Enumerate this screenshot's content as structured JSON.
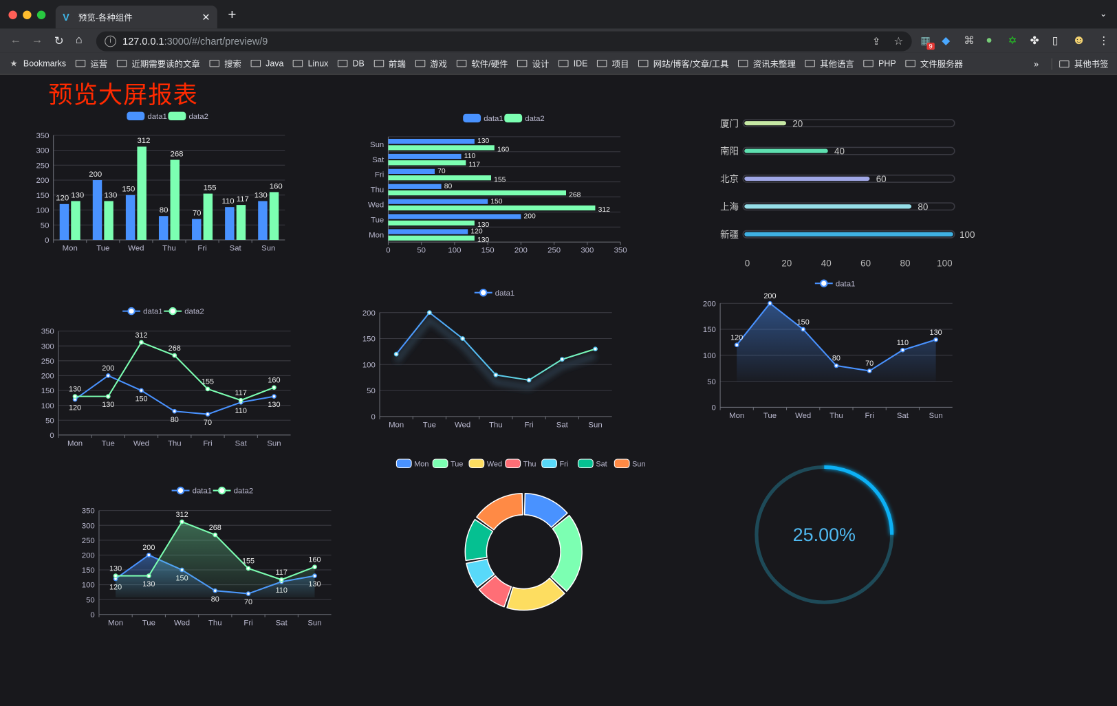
{
  "browser": {
    "tab_title": "预览-各种组件",
    "url_host": "127.0.0.1",
    "url_rest": ":3000/#/chart/preview/9",
    "extension_badge": "9",
    "bookmarks_label": "Bookmarks",
    "folders": [
      "运营",
      "近期需要读的文章",
      "搜索",
      "Java",
      "Linux",
      "DB",
      "前端",
      "游戏",
      "软件/硬件",
      "设计",
      "IDE",
      "项目",
      "网站/博客/文章/工具",
      "资讯未整理",
      "其他语言",
      "PHP",
      "文件服务器"
    ],
    "overflow": "»",
    "other_bookmarks": "其他书签"
  },
  "page": {
    "title": "预览大屏报表"
  },
  "colors": {
    "data1": "#4992ff",
    "data2": "#7cffb2",
    "title": "#ff2a00",
    "gauge": "#0bb0f5",
    "gauge_track": "#1e4a58"
  },
  "chart_data": [
    {
      "type": "bar",
      "categories": [
        "Mon",
        "Tue",
        "Wed",
        "Thu",
        "Fri",
        "Sat",
        "Sun"
      ],
      "series": [
        {
          "name": "data1",
          "values": [
            120,
            200,
            150,
            80,
            70,
            110,
            130
          ]
        },
        {
          "name": "data2",
          "values": [
            130,
            130,
            312,
            268,
            155,
            117,
            160
          ]
        }
      ],
      "ylim": [
        0,
        350
      ],
      "yticks": [
        0,
        50,
        100,
        150,
        200,
        250,
        300,
        350
      ],
      "legend": "top-center",
      "grid": true
    },
    {
      "type": "bar",
      "orientation": "horizontal",
      "categories": [
        "Mon",
        "Tue",
        "Wed",
        "Thu",
        "Fri",
        "Sat",
        "Sun"
      ],
      "series": [
        {
          "name": "data1",
          "values": [
            120,
            200,
            150,
            80,
            70,
            110,
            130
          ]
        },
        {
          "name": "data2",
          "values": [
            130,
            130,
            312,
            268,
            155,
            117,
            160
          ]
        }
      ],
      "xlim": [
        0,
        350
      ],
      "xticks": [
        0,
        50,
        100,
        150,
        200,
        250,
        300,
        350
      ],
      "legend": "top-center",
      "grid": true
    },
    {
      "type": "bar",
      "orientation": "horizontal",
      "style": "progress",
      "categories": [
        "新疆",
        "上海",
        "北京",
        "南阳",
        "厦门"
      ],
      "values": [
        100,
        80,
        60,
        40,
        20
      ],
      "colors": [
        "#3fb1e3",
        "#96dee8",
        "#a0a7e6",
        "#5ee0b0",
        "#c6e8a4"
      ],
      "xlim": [
        0,
        100
      ],
      "xticks": [
        0,
        20,
        40,
        60,
        80,
        100
      ]
    },
    {
      "type": "line",
      "categories": [
        "Mon",
        "Tue",
        "Wed",
        "Thu",
        "Fri",
        "Sat",
        "Sun"
      ],
      "series": [
        {
          "name": "data1",
          "values": [
            120,
            200,
            150,
            80,
            70,
            110,
            130
          ]
        },
        {
          "name": "data2",
          "values": [
            130,
            130,
            312,
            268,
            155,
            117,
            160
          ]
        }
      ],
      "ylim": [
        0,
        350
      ],
      "yticks": [
        0,
        50,
        100,
        150,
        200,
        250,
        300,
        350
      ],
      "legend": "top-center",
      "grid": true
    },
    {
      "type": "line",
      "categories": [
        "Mon",
        "Tue",
        "Wed",
        "Thu",
        "Fri",
        "Sat",
        "Sun"
      ],
      "series": [
        {
          "name": "data1",
          "values": [
            120,
            200,
            150,
            80,
            70,
            110,
            130
          ]
        }
      ],
      "ylim": [
        0,
        200
      ],
      "yticks": [
        0,
        50,
        100,
        150,
        200
      ],
      "legend": "top-center",
      "grid": true
    },
    {
      "type": "area",
      "categories": [
        "Mon",
        "Tue",
        "Wed",
        "Thu",
        "Fri",
        "Sat",
        "Sun"
      ],
      "series": [
        {
          "name": "data1",
          "values": [
            120,
            200,
            150,
            80,
            70,
            110,
            130
          ]
        }
      ],
      "ylim": [
        0,
        200
      ],
      "yticks": [
        0,
        50,
        100,
        150,
        200
      ],
      "legend": "top-center",
      "grid": true
    },
    {
      "type": "area",
      "categories": [
        "Mon",
        "Tue",
        "Wed",
        "Thu",
        "Fri",
        "Sat",
        "Sun"
      ],
      "series": [
        {
          "name": "data1",
          "values": [
            120,
            200,
            150,
            80,
            70,
            110,
            130
          ]
        },
        {
          "name": "data2",
          "values": [
            130,
            130,
            312,
            268,
            155,
            117,
            160
          ]
        }
      ],
      "ylim": [
        0,
        350
      ],
      "yticks": [
        0,
        50,
        100,
        150,
        200,
        250,
        300,
        350
      ],
      "legend": "top-center",
      "grid": true
    },
    {
      "type": "pie",
      "donut": true,
      "categories": [
        "Mon",
        "Tue",
        "Wed",
        "Thu",
        "Fri",
        "Sat",
        "Sun"
      ],
      "values": [
        50,
        84,
        64,
        33,
        29,
        45,
        55
      ],
      "colors": [
        "#4992ff",
        "#7cffb2",
        "#fddd60",
        "#ff6e76",
        "#58d9f9",
        "#05c091",
        "#ff8a45"
      ],
      "legend": "top-center"
    },
    {
      "type": "gauge",
      "value": 25,
      "max": 100,
      "label": "25.00%"
    }
  ]
}
